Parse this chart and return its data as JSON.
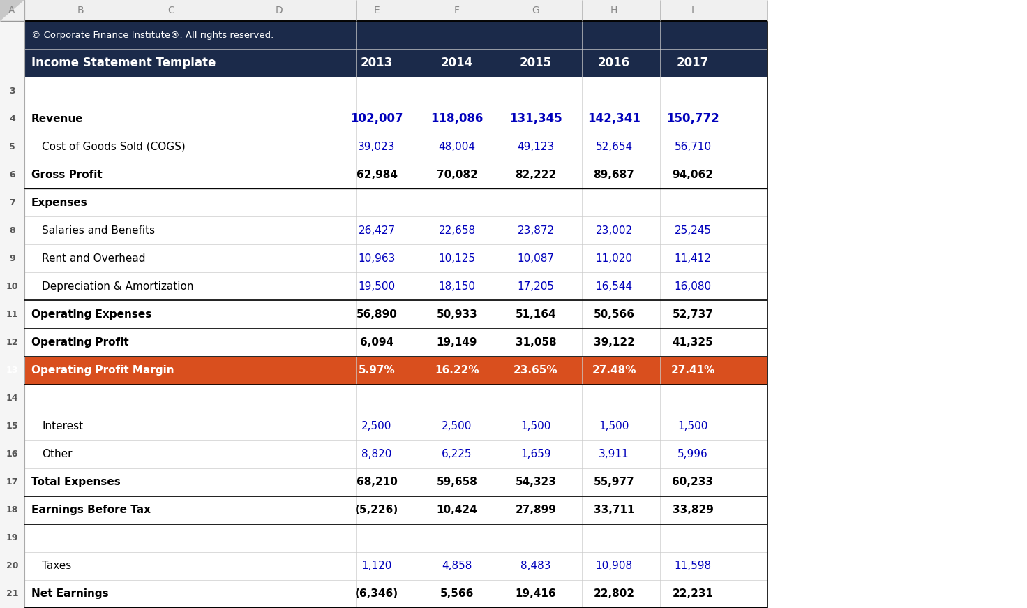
{
  "header_bg": "#1b2a4a",
  "orange_bg": "#d94f1e",
  "header_text_color": "#ffffff",
  "orange_text_color": "#ffffff",
  "blue_text_color": "#0000bb",
  "black_text_color": "#000000",
  "gray_text_color": "#555555",
  "col_header_bg": "#f0f0f0",
  "col_header_text": "#888888",
  "figsize": [
    14.72,
    8.71
  ],
  "dpi": 100,
  "rows": [
    {
      "row": 1,
      "label": "© Corporate Finance Institute®. All rights reserved.",
      "values": [
        "",
        "",
        "",
        "",
        ""
      ],
      "style": "copyright",
      "bold": false,
      "label_indent": false
    },
    {
      "row": 2,
      "label": "Income Statement Template",
      "values": [
        "2013",
        "2014",
        "2015",
        "2016",
        "2017"
      ],
      "style": "header",
      "bold": true,
      "label_indent": false
    },
    {
      "row": 3,
      "label": "",
      "values": [
        "",
        "",
        "",
        "",
        ""
      ],
      "style": "empty",
      "bold": false,
      "label_indent": false
    },
    {
      "row": 4,
      "label": "Revenue",
      "values": [
        "102,007",
        "118,086",
        "131,345",
        "142,341",
        "150,772"
      ],
      "style": "blue_bold",
      "bold": true,
      "label_indent": false
    },
    {
      "row": 5,
      "label": "Cost of Goods Sold (COGS)",
      "values": [
        "39,023",
        "48,004",
        "49,123",
        "52,654",
        "56,710"
      ],
      "style": "blue_normal",
      "bold": false,
      "label_indent": true
    },
    {
      "row": 6,
      "label": "Gross Profit",
      "values": [
        "62,984",
        "70,082",
        "82,222",
        "89,687",
        "94,062"
      ],
      "style": "black_bold",
      "bold": true,
      "label_indent": false
    },
    {
      "row": 7,
      "label": "Expenses",
      "values": [
        "",
        "",
        "",
        "",
        ""
      ],
      "style": "black_bold_label",
      "bold": true,
      "label_indent": false
    },
    {
      "row": 8,
      "label": "Salaries and Benefits",
      "values": [
        "26,427",
        "22,658",
        "23,872",
        "23,002",
        "25,245"
      ],
      "style": "blue_normal",
      "bold": false,
      "label_indent": true
    },
    {
      "row": 9,
      "label": "Rent and Overhead",
      "values": [
        "10,963",
        "10,125",
        "10,087",
        "11,020",
        "11,412"
      ],
      "style": "blue_normal",
      "bold": false,
      "label_indent": true
    },
    {
      "row": 10,
      "label": "Depreciation & Amortization",
      "values": [
        "19,500",
        "18,150",
        "17,205",
        "16,544",
        "16,080"
      ],
      "style": "blue_normal",
      "bold": false,
      "label_indent": true
    },
    {
      "row": 11,
      "label": "Operating Expenses",
      "values": [
        "56,890",
        "50,933",
        "51,164",
        "50,566",
        "52,737"
      ],
      "style": "black_bold",
      "bold": true,
      "label_indent": false
    },
    {
      "row": 12,
      "label": "Operating Profit",
      "values": [
        "6,094",
        "19,149",
        "31,058",
        "39,122",
        "41,325"
      ],
      "style": "black_bold",
      "bold": true,
      "label_indent": false
    },
    {
      "row": 13,
      "label": "Operating Profit Margin",
      "values": [
        "5.97%",
        "16.22%",
        "23.65%",
        "27.48%",
        "27.41%"
      ],
      "style": "orange",
      "bold": true,
      "label_indent": false
    },
    {
      "row": 14,
      "label": "",
      "values": [
        "",
        "",
        "",
        "",
        ""
      ],
      "style": "empty",
      "bold": false,
      "label_indent": false
    },
    {
      "row": 15,
      "label": "Interest",
      "values": [
        "2,500",
        "2,500",
        "1,500",
        "1,500",
        "1,500"
      ],
      "style": "blue_normal",
      "bold": false,
      "label_indent": true
    },
    {
      "row": 16,
      "label": "Other",
      "values": [
        "8,820",
        "6,225",
        "1,659",
        "3,911",
        "5,996"
      ],
      "style": "blue_normal",
      "bold": false,
      "label_indent": true
    },
    {
      "row": 17,
      "label": "Total Expenses",
      "values": [
        "68,210",
        "59,658",
        "54,323",
        "55,977",
        "60,233"
      ],
      "style": "black_bold",
      "bold": true,
      "label_indent": false
    },
    {
      "row": 18,
      "label": "Earnings Before Tax",
      "values": [
        "(5,226)",
        "10,424",
        "27,899",
        "33,711",
        "33,829"
      ],
      "style": "black_bold",
      "bold": true,
      "label_indent": false
    },
    {
      "row": 19,
      "label": "",
      "values": [
        "",
        "",
        "",
        "",
        ""
      ],
      "style": "empty",
      "bold": false,
      "label_indent": false
    },
    {
      "row": 20,
      "label": "Taxes",
      "values": [
        "1,120",
        "4,858",
        "8,483",
        "10,908",
        "11,598"
      ],
      "style": "blue_normal",
      "bold": false,
      "label_indent": true
    },
    {
      "row": 21,
      "label": "Net Earnings",
      "values": [
        "(6,346)",
        "5,566",
        "19,416",
        "22,802",
        "22,231"
      ],
      "style": "black_bold",
      "bold": true,
      "label_indent": false
    }
  ],
  "col_headers": [
    "A",
    "B",
    "C",
    "D",
    "E",
    "F",
    "G",
    "H",
    "I"
  ],
  "thick_bottom_rows": [
    6,
    10,
    11,
    12,
    13,
    17,
    18,
    21
  ],
  "double_bottom_rows": [
    13
  ]
}
